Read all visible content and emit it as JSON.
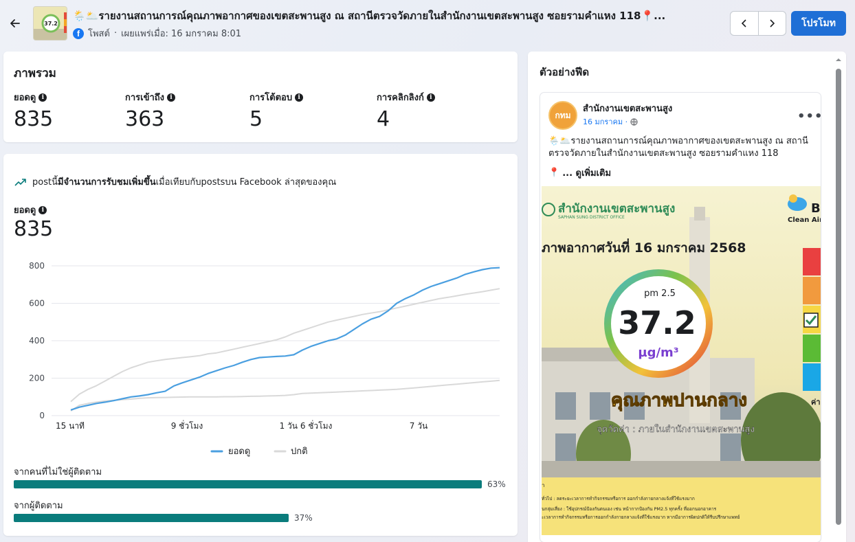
{
  "header": {
    "title": "🌦️🌥️รายงานสถานการณ์คุณภาพอากาศของเขตสะพานสูง ณ สถานีตรวจวัดภายในสำนักงานเขตสะพานสูง ซอยรามคำแหง 118📍...",
    "source": "โพสต์",
    "published": "เผยแพร่เมื่อ: 16 มกราคม 8:01",
    "promote_label": "โปรโมท",
    "thumb_text": "37.2"
  },
  "overview": {
    "title": "ภาพรวม",
    "metrics": [
      {
        "label": "ยอดดู",
        "value": "835"
      },
      {
        "label": "การเข้าถึง",
        "value": "363"
      },
      {
        "label": "การโต้ตอบ",
        "value": "5"
      },
      {
        "label": "การคลิกลิงก์",
        "value": "4"
      }
    ]
  },
  "insight": {
    "prefix": "postนี้",
    "highlight": "มีจำนวนการรับชมเพิ่มขึ้น",
    "suffix": "เมื่อเทียบกับpostsบน Facebook ล่าสุดของคุณ"
  },
  "views": {
    "label": "ยอดดู",
    "value": "835"
  },
  "chart_data": {
    "type": "line",
    "x_ticks": [
      "15 นาที",
      "9 ชั่วโมง",
      "1 วัน 6 ชั่วโมง",
      "7 วัน"
    ],
    "ylim": [
      0,
      800
    ],
    "y_ticks": [
      0,
      200,
      400,
      600,
      800
    ],
    "grid": true,
    "legend_position": "bottom",
    "series": [
      {
        "name": "ยอดดู",
        "color": "#4a9fe0",
        "values": [
          30,
          45,
          55,
          65,
          72,
          80,
          90,
          100,
          105,
          112,
          122,
          130,
          158,
          175,
          190,
          205,
          225,
          240,
          255,
          268,
          285,
          300,
          310,
          313,
          316,
          318,
          325,
          350,
          370,
          385,
          400,
          410,
          430,
          460,
          490,
          515,
          530,
          560,
          600,
          625,
          645,
          670,
          690,
          705,
          720,
          735,
          755,
          768,
          780,
          788,
          790
        ]
      },
      {
        "name": "ปกติ",
        "color": "#d9d9d9",
        "values": [
          75,
          115,
          140,
          160,
          185,
          210,
          235,
          255,
          270,
          285,
          293,
          300,
          305,
          310,
          315,
          320,
          330,
          335,
          345,
          355,
          365,
          375,
          385,
          395,
          405,
          420,
          440,
          455,
          470,
          485,
          500,
          510,
          520,
          530,
          540,
          548,
          555,
          565,
          575,
          585,
          595,
          605,
          615,
          625,
          632,
          640,
          648,
          655,
          662,
          670,
          678
        ]
      },
      {
        "name": "",
        "color": "#d9d9d9",
        "values": [
          25,
          55,
          65,
          72,
          78,
          82,
          85,
          88,
          92,
          95,
          96,
          97,
          98,
          99,
          100,
          100,
          100,
          100,
          101,
          101,
          102,
          103,
          104,
          105,
          106,
          108,
          112,
          118,
          120,
          122,
          124,
          126,
          128,
          130,
          132,
          134,
          136,
          138,
          140,
          144,
          148,
          152,
          156,
          160,
          164,
          168,
          172,
          176,
          180,
          184,
          188
        ]
      }
    ]
  },
  "legend": {
    "views": "ยอดดู",
    "normal": "ปกติ"
  },
  "audience": [
    {
      "label": "จากคนที่ไม่ใช่ผู้ติดตาม",
      "percent": "63%",
      "value": 63
    },
    {
      "label": "จากผู้ติดตาม",
      "percent": "37%",
      "value": 37
    }
  ],
  "preview": {
    "title": "ตัวอย่างฟีด",
    "page_name": "สำนักงานเขตสะพานสูง",
    "avatar_text": "กทม",
    "date": "16 มกราคม ·",
    "text": "🌦️🌥️รายงานสถานการณ์คุณภาพอากาศของเขตสะพานสูง ณ สถานีตรวจวัดภายในสำนักงานเขตสะพานสูง ซอยรามคำแหง 118",
    "see_more": "... ดูเพิ่มเติม",
    "image": {
      "office_name": "สำนักงานเขตสะพานสูง",
      "office_name_en": "SAPHAN SUNG DISTRICT OFFICE",
      "brand": "B",
      "brand_sub": "Clean Air",
      "headline": "ภาพอากาศวันที่ 16 มกราคม 2568",
      "pm_label": "pm 2.5",
      "pm_value": "37.2",
      "pm_unit": "µg/m³",
      "quality": "คุณภาพปานกลาง",
      "station": "จุดวัดค่า : ภายในสำนักงานเขตสะพานสูง",
      "legend_top": "ค่า",
      "advice1": "ทั่วไป : ลดระยะเวลาการทำกิจกรรมหรือการ ออกกำลังกายกลางแจ้งที่ใช้แรงมาก",
      "advice2": "นกลุ่มเสี่ยง : ใช้อุปกรณ์ป้องกันตนเอง เช่น หน้ากากป้องกัน PM2.5 ทุกครั้ง ที่ออกนอกอาคาร",
      "advice3": "ะเวลาการทำกิจกรรมหรือการออกกำลังกายกลางแจ้งที่ใช้แรงมาก หากมีอาการผิดปกติให้รีบปรึกษาแพทย์"
    }
  }
}
